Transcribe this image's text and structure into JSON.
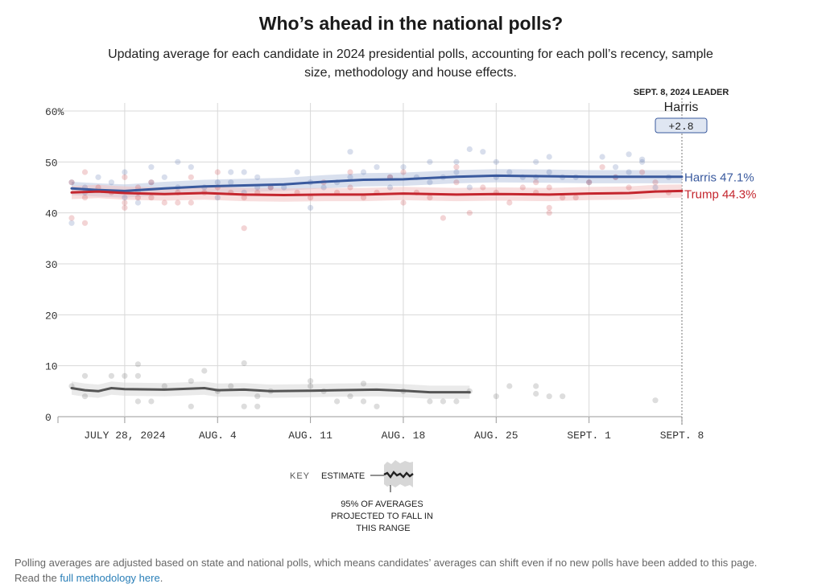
{
  "header": {
    "title": "Who’s ahead in the national polls?",
    "subtitle": "Updating average for each candidate in 2024 presidential polls, accounting for each poll’s recency, sample size, methodology and house effects."
  },
  "leader": {
    "heading": "SEPT. 8, 2024 LEADER",
    "name": "Harris",
    "margin": "+2.8"
  },
  "key": {
    "label": "KEY",
    "estimate_label": "ESTIMATE",
    "range_note": "95% OF AVERAGES PROJECTED TO FALL IN THIS RANGE"
  },
  "footnote": {
    "text": "Polling averages are adjusted based on state and national polls, which means candidates’ averages can shift even if no new polls have been added to this page.",
    "read_prefix": "Read the",
    "link_text": "full methodology here",
    "suffix": "."
  },
  "colors": {
    "harris": "#3a5a9e",
    "trump": "#c4262e",
    "other": "#555555",
    "grid": "#d8d8d8"
  },
  "chart_data": {
    "type": "line",
    "x_start": "2024-07-24",
    "x_end": "2024-09-08",
    "xticks": [
      {
        "date": "2024-07-28",
        "label": "JULY 28, 2024"
      },
      {
        "date": "2024-08-04",
        "label": "AUG. 4"
      },
      {
        "date": "2024-08-11",
        "label": "AUG. 11"
      },
      {
        "date": "2024-08-18",
        "label": "AUG. 18"
      },
      {
        "date": "2024-08-25",
        "label": "AUG. 25"
      },
      {
        "date": "2024-09-01",
        "label": "SEPT. 1"
      },
      {
        "date": "2024-09-08",
        "label": "SEPT. 8"
      }
    ],
    "yticks": [
      0,
      10,
      20,
      30,
      40,
      50,
      60
    ],
    "ytick_labels": [
      "0",
      "10",
      "20",
      "30",
      "40",
      "50",
      "60%"
    ],
    "ylim": [
      0,
      60
    ],
    "band_halfwidth": 1.3,
    "series": [
      {
        "name": "Harris",
        "end_label": "Harris 47.1%",
        "color": "#3a5a9e",
        "line": [
          [
            "2024-07-24",
            44.8
          ],
          [
            "2024-07-26",
            44.5
          ],
          [
            "2024-07-28",
            44.3
          ],
          [
            "2024-07-31",
            44.8
          ],
          [
            "2024-08-03",
            45.2
          ],
          [
            "2024-08-06",
            45.4
          ],
          [
            "2024-08-09",
            45.6
          ],
          [
            "2024-08-12",
            46.1
          ],
          [
            "2024-08-15",
            46.5
          ],
          [
            "2024-08-18",
            46.6
          ],
          [
            "2024-08-22",
            47.1
          ],
          [
            "2024-08-25",
            47.3
          ],
          [
            "2024-08-29",
            47.2
          ],
          [
            "2024-09-01",
            47.1
          ],
          [
            "2024-09-04",
            47.1
          ],
          [
            "2024-09-08",
            47.1
          ]
        ],
        "polls": [
          [
            "2024-07-24",
            46
          ],
          [
            "2024-07-24",
            38
          ],
          [
            "2024-07-25",
            45
          ],
          [
            "2024-07-25",
            44
          ],
          [
            "2024-07-26",
            47
          ],
          [
            "2024-07-27",
            46
          ],
          [
            "2024-07-28",
            48
          ],
          [
            "2024-07-28",
            43
          ],
          [
            "2024-07-29",
            44
          ],
          [
            "2024-07-29",
            42
          ],
          [
            "2024-07-30",
            49
          ],
          [
            "2024-07-30",
            46
          ],
          [
            "2024-07-31",
            47
          ],
          [
            "2024-08-01",
            50
          ],
          [
            "2024-08-01",
            45
          ],
          [
            "2024-08-02",
            49
          ],
          [
            "2024-08-03",
            45
          ],
          [
            "2024-08-04",
            46
          ],
          [
            "2024-08-04",
            43
          ],
          [
            "2024-08-05",
            48
          ],
          [
            "2024-08-05",
            46
          ],
          [
            "2024-08-06",
            48
          ],
          [
            "2024-08-06",
            44
          ],
          [
            "2024-08-07",
            47
          ],
          [
            "2024-08-07",
            45
          ],
          [
            "2024-08-08",
            45
          ],
          [
            "2024-08-09",
            45
          ],
          [
            "2024-08-10",
            48
          ],
          [
            "2024-08-11",
            41
          ],
          [
            "2024-08-11",
            46
          ],
          [
            "2024-08-12",
            45
          ],
          [
            "2024-08-13",
            46
          ],
          [
            "2024-08-14",
            52
          ],
          [
            "2024-08-14",
            47
          ],
          [
            "2024-08-15",
            48
          ],
          [
            "2024-08-16",
            49
          ],
          [
            "2024-08-17",
            47
          ],
          [
            "2024-08-17",
            45
          ],
          [
            "2024-08-18",
            49
          ],
          [
            "2024-08-19",
            47
          ],
          [
            "2024-08-20",
            50
          ],
          [
            "2024-08-20",
            46
          ],
          [
            "2024-08-21",
            47
          ],
          [
            "2024-08-22",
            48
          ],
          [
            "2024-08-22",
            50
          ],
          [
            "2024-08-23",
            52.5
          ],
          [
            "2024-08-23",
            45
          ],
          [
            "2024-08-24",
            52
          ],
          [
            "2024-08-25",
            50
          ],
          [
            "2024-08-25",
            47
          ],
          [
            "2024-08-26",
            48
          ],
          [
            "2024-08-27",
            47
          ],
          [
            "2024-08-28",
            50
          ],
          [
            "2024-08-28",
            47
          ],
          [
            "2024-08-29",
            51
          ],
          [
            "2024-08-29",
            48
          ],
          [
            "2024-08-30",
            47
          ],
          [
            "2024-08-31",
            47
          ],
          [
            "2024-09-01",
            46
          ],
          [
            "2024-09-02",
            51
          ],
          [
            "2024-09-03",
            47
          ],
          [
            "2024-09-03",
            49
          ],
          [
            "2024-09-04",
            48
          ],
          [
            "2024-09-04",
            51.5
          ],
          [
            "2024-09-05",
            50.5
          ],
          [
            "2024-09-05",
            50
          ],
          [
            "2024-09-06",
            45
          ],
          [
            "2024-09-07",
            47
          ]
        ]
      },
      {
        "name": "Trump",
        "end_label": "Trump 44.3%",
        "color": "#c4262e",
        "line": [
          [
            "2024-07-24",
            44.0
          ],
          [
            "2024-07-26",
            44.2
          ],
          [
            "2024-07-28",
            43.9
          ],
          [
            "2024-07-31",
            43.7
          ],
          [
            "2024-08-03",
            43.9
          ],
          [
            "2024-08-06",
            43.6
          ],
          [
            "2024-08-09",
            43.5
          ],
          [
            "2024-08-12",
            43.6
          ],
          [
            "2024-08-15",
            43.6
          ],
          [
            "2024-08-18",
            43.8
          ],
          [
            "2024-08-22",
            43.6
          ],
          [
            "2024-08-25",
            43.7
          ],
          [
            "2024-08-29",
            43.6
          ],
          [
            "2024-09-01",
            43.8
          ],
          [
            "2024-09-04",
            43.9
          ],
          [
            "2024-09-06",
            44.2
          ],
          [
            "2024-09-08",
            44.3
          ]
        ],
        "polls": [
          [
            "2024-07-24",
            39
          ],
          [
            "2024-07-24",
            46
          ],
          [
            "2024-07-25",
            43
          ],
          [
            "2024-07-25",
            38
          ],
          [
            "2024-07-25",
            48
          ],
          [
            "2024-07-26",
            45
          ],
          [
            "2024-07-27",
            44
          ],
          [
            "2024-07-28",
            42
          ],
          [
            "2024-07-28",
            41
          ],
          [
            "2024-07-28",
            47
          ],
          [
            "2024-07-29",
            45
          ],
          [
            "2024-07-29",
            43
          ],
          [
            "2024-07-30",
            46
          ],
          [
            "2024-07-30",
            43
          ],
          [
            "2024-07-31",
            42
          ],
          [
            "2024-08-01",
            44
          ],
          [
            "2024-08-01",
            42
          ],
          [
            "2024-08-02",
            47
          ],
          [
            "2024-08-02",
            42
          ],
          [
            "2024-08-03",
            44
          ],
          [
            "2024-08-04",
            45
          ],
          [
            "2024-08-04",
            48
          ],
          [
            "2024-08-05",
            44
          ],
          [
            "2024-08-06",
            43
          ],
          [
            "2024-08-06",
            37
          ],
          [
            "2024-08-07",
            44
          ],
          [
            "2024-08-08",
            45
          ],
          [
            "2024-08-10",
            44
          ],
          [
            "2024-08-11",
            43
          ],
          [
            "2024-08-12",
            46
          ],
          [
            "2024-08-13",
            44
          ],
          [
            "2024-08-14",
            48
          ],
          [
            "2024-08-14",
            45
          ],
          [
            "2024-08-15",
            43
          ],
          [
            "2024-08-16",
            44
          ],
          [
            "2024-08-17",
            47
          ],
          [
            "2024-08-18",
            42
          ],
          [
            "2024-08-18",
            48
          ],
          [
            "2024-08-19",
            44
          ],
          [
            "2024-08-20",
            43
          ],
          [
            "2024-08-21",
            39
          ],
          [
            "2024-08-22",
            46
          ],
          [
            "2024-08-22",
            49
          ],
          [
            "2024-08-23",
            40
          ],
          [
            "2024-08-24",
            45
          ],
          [
            "2024-08-25",
            44
          ],
          [
            "2024-08-26",
            42
          ],
          [
            "2024-08-27",
            45
          ],
          [
            "2024-08-28",
            44
          ],
          [
            "2024-08-28",
            46
          ],
          [
            "2024-08-29",
            41
          ],
          [
            "2024-08-29",
            40
          ],
          [
            "2024-08-29",
            45
          ],
          [
            "2024-08-30",
            43
          ],
          [
            "2024-08-31",
            43
          ],
          [
            "2024-09-01",
            46
          ],
          [
            "2024-09-02",
            49
          ],
          [
            "2024-09-03",
            47
          ],
          [
            "2024-09-04",
            45
          ],
          [
            "2024-09-05",
            48
          ],
          [
            "2024-09-06",
            46
          ],
          [
            "2024-09-07",
            44
          ]
        ]
      },
      {
        "name": "Other",
        "end_label": "",
        "color": "#555555",
        "line": [
          [
            "2024-07-24",
            5.6
          ],
          [
            "2024-07-25",
            5.2
          ],
          [
            "2024-07-26",
            5.0
          ],
          [
            "2024-07-27",
            5.6
          ],
          [
            "2024-07-28",
            5.4
          ],
          [
            "2024-07-31",
            5.3
          ],
          [
            "2024-08-03",
            5.6
          ],
          [
            "2024-08-04",
            5.2
          ],
          [
            "2024-08-06",
            5.3
          ],
          [
            "2024-08-08",
            5.0
          ],
          [
            "2024-08-11",
            5.1
          ],
          [
            "2024-08-13",
            5.2
          ],
          [
            "2024-08-16",
            5.3
          ],
          [
            "2024-08-18",
            5.1
          ],
          [
            "2024-08-20",
            4.8
          ],
          [
            "2024-08-23",
            4.8
          ]
        ],
        "polls": [
          [
            "2024-07-24",
            6
          ],
          [
            "2024-07-25",
            4
          ],
          [
            "2024-07-25",
            8
          ],
          [
            "2024-07-27",
            8
          ],
          [
            "2024-07-28",
            8
          ],
          [
            "2024-07-29",
            8
          ],
          [
            "2024-07-29",
            10.3
          ],
          [
            "2024-07-29",
            3
          ],
          [
            "2024-07-30",
            3
          ],
          [
            "2024-07-31",
            6
          ],
          [
            "2024-08-02",
            2
          ],
          [
            "2024-08-02",
            7
          ],
          [
            "2024-08-03",
            9
          ],
          [
            "2024-08-04",
            5
          ],
          [
            "2024-08-05",
            6
          ],
          [
            "2024-08-06",
            10.5
          ],
          [
            "2024-08-06",
            2
          ],
          [
            "2024-08-07",
            4
          ],
          [
            "2024-08-07",
            2
          ],
          [
            "2024-08-08",
            5
          ],
          [
            "2024-08-11",
            7
          ],
          [
            "2024-08-11",
            6
          ],
          [
            "2024-08-12",
            5
          ],
          [
            "2024-08-13",
            3
          ],
          [
            "2024-08-14",
            4
          ],
          [
            "2024-08-15",
            6.5
          ],
          [
            "2024-08-15",
            3
          ],
          [
            "2024-08-16",
            2
          ],
          [
            "2024-08-18",
            5
          ],
          [
            "2024-08-20",
            3
          ],
          [
            "2024-08-21",
            3
          ],
          [
            "2024-08-22",
            3
          ],
          [
            "2024-08-23",
            5
          ],
          [
            "2024-08-25",
            4
          ],
          [
            "2024-08-26",
            6
          ],
          [
            "2024-08-28",
            6
          ],
          [
            "2024-08-28",
            4.5
          ],
          [
            "2024-08-29",
            4
          ],
          [
            "2024-08-30",
            4
          ],
          [
            "2024-09-06",
            3.2
          ]
        ]
      }
    ]
  }
}
